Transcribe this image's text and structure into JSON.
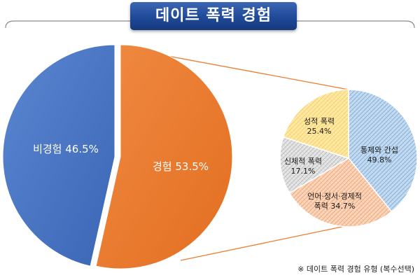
{
  "title": "데이트 폭력 경험",
  "note": "※ 데이트 폭력 경험 유형 (복수선택)",
  "colors": {
    "title_bg": "#1f4a98",
    "blue": "#4472c4",
    "orange": "#ed7d31",
    "gray": "#d0d0d0",
    "yellow": "#ffd966",
    "connector": "#ed7d31"
  },
  "chart_data": [
    {
      "type": "pie",
      "slices": [
        {
          "label": "비경험",
          "value": 46.5,
          "display": "비경험 46.5%",
          "color": "#4472c4"
        },
        {
          "label": "경험",
          "value": 53.5,
          "display": "경험 53.5%",
          "color": "#ed7d31"
        }
      ]
    },
    {
      "type": "pie",
      "slices": [
        {
          "label": "통제와 간섭",
          "value": 49.8,
          "lines": [
            "통제와 간섭",
            "49.8%"
          ],
          "color": "#9dc3e6"
        },
        {
          "label": "언어·정서·경제적 폭력",
          "value": 34.7,
          "lines": [
            "언어·정서·경제적",
            "폭력 34.7%"
          ],
          "color": "#f4b183"
        },
        {
          "label": "신체적 폭력",
          "value": 17.1,
          "lines": [
            "신체적 폭력",
            "17.1%"
          ],
          "color": "#d0d0d0"
        },
        {
          "label": "성적 폭력",
          "value": 25.4,
          "lines": [
            "성적 폭력",
            "25.4%"
          ],
          "color": "#ffd966"
        }
      ]
    }
  ]
}
